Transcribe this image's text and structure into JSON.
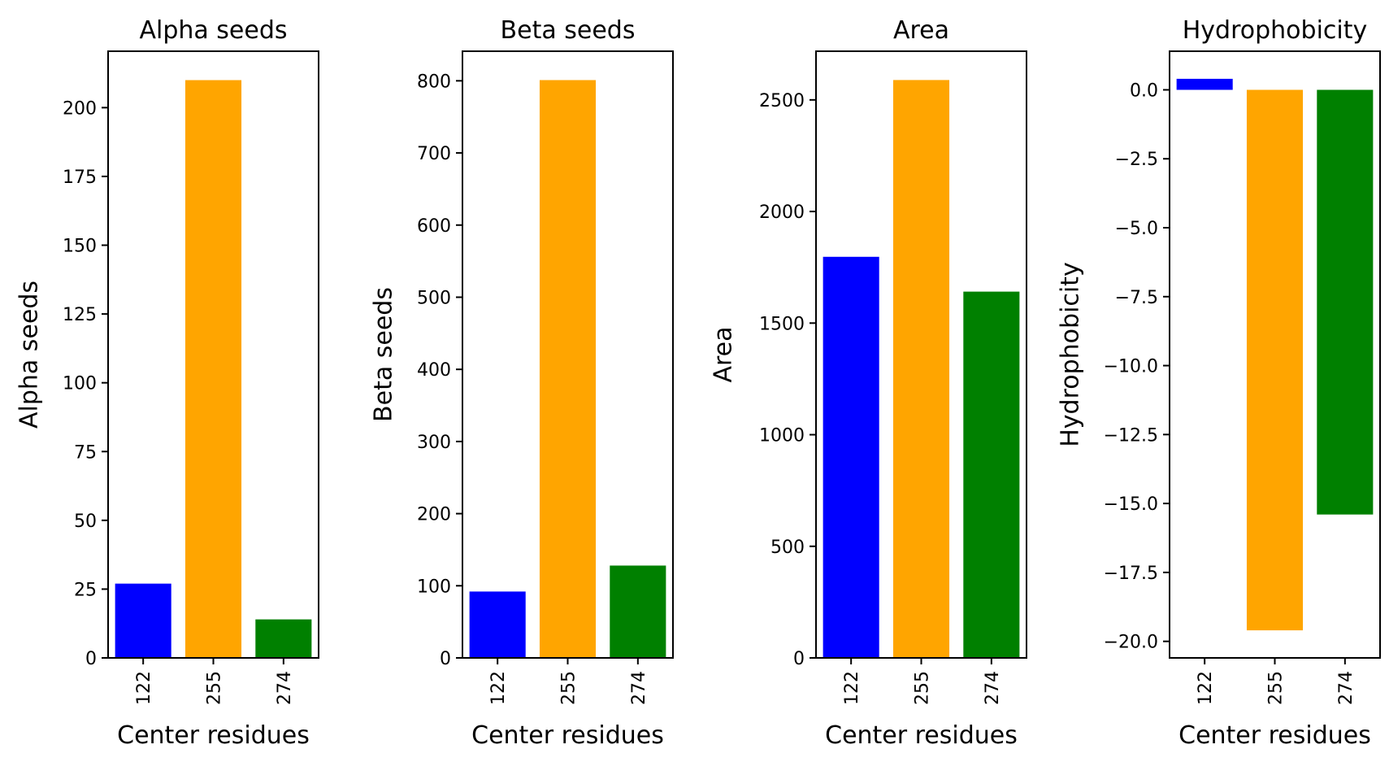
{
  "chart_data": [
    {
      "type": "bar",
      "title": "Alpha seeds",
      "xlabel": "Center residues",
      "ylabel": "Alpha seeds",
      "categories": [
        "122",
        "255",
        "274"
      ],
      "values": [
        27,
        210,
        14
      ],
      "colors": [
        "#0000ff",
        "#ffa500",
        "#008000"
      ],
      "ylim": [
        0,
        220.5
      ],
      "yticks": [
        0,
        25,
        50,
        75,
        100,
        125,
        150,
        175,
        200
      ],
      "ytick_labels": [
        "0",
        "25",
        "50",
        "75",
        "100",
        "125",
        "150",
        "175",
        "200"
      ],
      "grid": false
    },
    {
      "type": "bar",
      "title": "Beta seeds",
      "xlabel": "Center residues",
      "ylabel": "Beta seeds",
      "categories": [
        "122",
        "255",
        "274"
      ],
      "values": [
        92,
        801,
        128
      ],
      "colors": [
        "#0000ff",
        "#ffa500",
        "#008000"
      ],
      "ylim": [
        0,
        841
      ],
      "yticks": [
        0,
        100,
        200,
        300,
        400,
        500,
        600,
        700,
        800
      ],
      "ytick_labels": [
        "0",
        "100",
        "200",
        "300",
        "400",
        "500",
        "600",
        "700",
        "800"
      ],
      "grid": false
    },
    {
      "type": "bar",
      "title": "Area",
      "xlabel": "Center residues",
      "ylabel": "Area",
      "categories": [
        "122",
        "255",
        "274"
      ],
      "values": [
        1797,
        2589,
        1641
      ],
      "colors": [
        "#0000ff",
        "#ffa500",
        "#008000"
      ],
      "ylim": [
        0,
        2718
      ],
      "yticks": [
        0,
        500,
        1000,
        1500,
        2000,
        2500
      ],
      "ytick_labels": [
        "0",
        "500",
        "1000",
        "1500",
        "2000",
        "2500"
      ],
      "grid": false
    },
    {
      "type": "bar",
      "title": "Hydrophobicity",
      "xlabel": "Center residues",
      "ylabel": "Hydrophobicity",
      "categories": [
        "122",
        "255",
        "274"
      ],
      "values": [
        0.4,
        -19.6,
        -15.4
      ],
      "colors": [
        "#0000ff",
        "#ffa500",
        "#008000"
      ],
      "ylim": [
        -20.6,
        1.4
      ],
      "yticks": [
        0,
        -2.5,
        -5,
        -7.5,
        -10,
        -12.5,
        -15,
        -17.5,
        -20
      ],
      "ytick_labels": [
        "0.0",
        "−2.5",
        "−5.0",
        "−7.5",
        "−10.0",
        "−12.5",
        "−15.0",
        "−17.5",
        "−20.0"
      ],
      "grid": false
    }
  ]
}
